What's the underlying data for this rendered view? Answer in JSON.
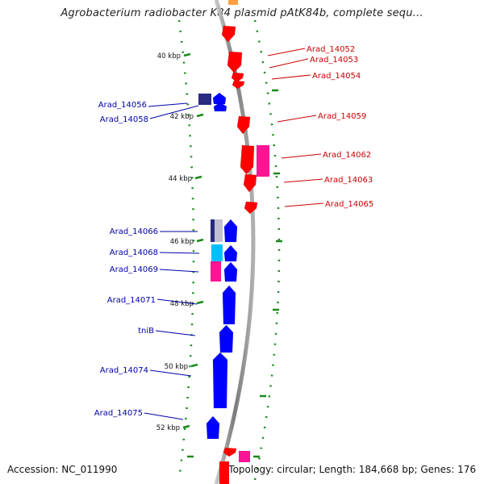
{
  "title": "Agrobacterium radiobacter K84 plasmid pAtK84b, complete sequ...",
  "footer": {
    "accession": "Accession: NC_011990",
    "topology": "Topology: circular; Length: 184,668 bp; Genes: 176"
  },
  "scale_labels": [
    "40 kbp",
    "42 kbp",
    "44 kbp",
    "46 kbp",
    "48 kbp",
    "50 kbp",
    "52 kbp"
  ],
  "forward_genes": [
    "Arad_14052",
    "Arad_14053",
    "Arad_14054",
    "Arad_14059",
    "Arad_14062",
    "Arad_14063",
    "Arad_14065"
  ],
  "reverse_genes": [
    "Arad_14056",
    "Arad_14058",
    "Arad_14066",
    "Arad_14068",
    "Arad_14069",
    "Arad_14071",
    "tniB",
    "Arad_14074",
    "Arad_14075"
  ],
  "colors": {
    "forward": "#ff0000",
    "reverse": "#0000ff",
    "forward_label": "#cc0000",
    "reverse_label": "#0000aa",
    "pink": "#ff1493",
    "cyan": "#00bfff",
    "navy": "#2a2a80",
    "backbone": "#8a8a8a",
    "tick": "#1a8a1a"
  }
}
